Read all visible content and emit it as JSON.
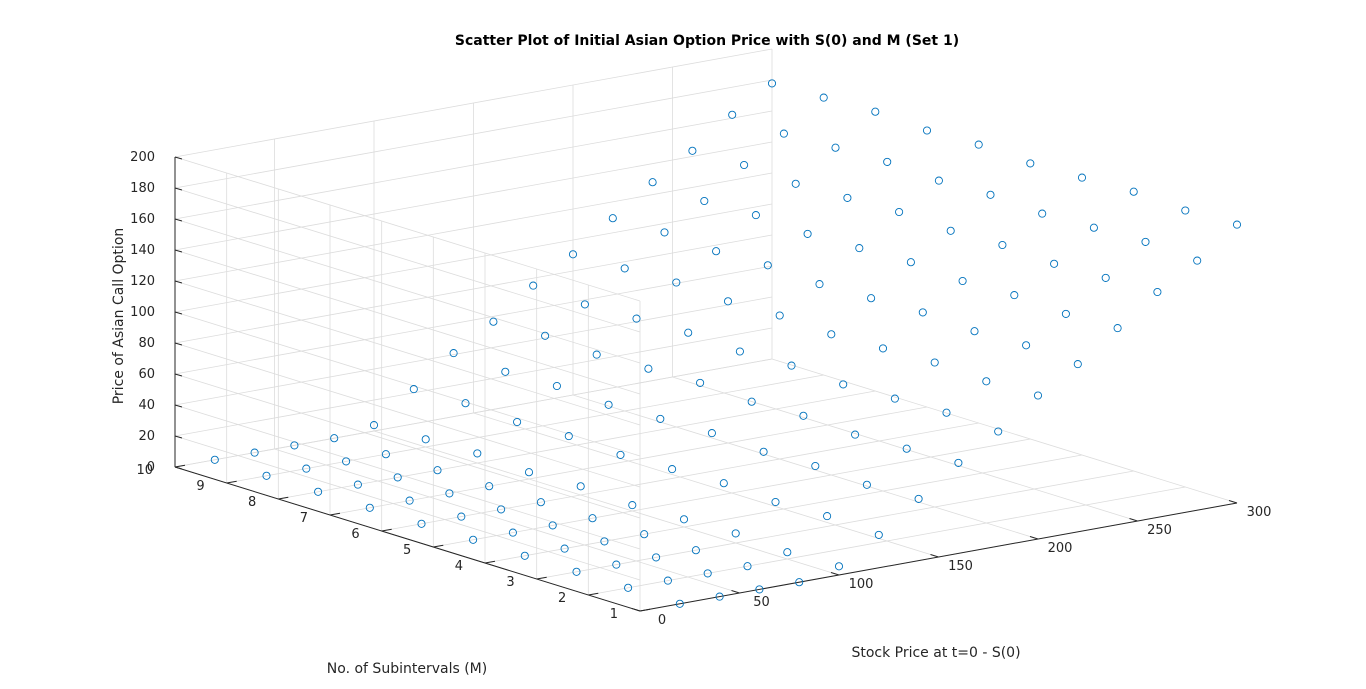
{
  "chart_data": {
    "type": "scatter",
    "title": "Scatter Plot of Initial Asian Option Price with S(0) and M (Set 1)",
    "xlabel": "Stock Price at t=0 - S(0)",
    "ylabel": "No. of Subintervals (M)",
    "zlabel": "Price of Asian Call Option",
    "xlim": [
      0,
      300
    ],
    "ylim": [
      1,
      10
    ],
    "zlim": [
      0,
      200
    ],
    "xticks": [
      "0",
      "50",
      "100",
      "150",
      "200",
      "250",
      "300"
    ],
    "yticks": [
      "1",
      "2",
      "3",
      "4",
      "5",
      "6",
      "7",
      "8",
      "9",
      "10"
    ],
    "zticks": [
      "0",
      "20",
      "40",
      "60",
      "80",
      "100",
      "120",
      "140",
      "160",
      "180",
      "200"
    ],
    "grid": true,
    "marker": "open circle",
    "marker_color": "#0072BD",
    "series": [
      {
        "s0_levels": [
          20,
          40,
          60,
          80,
          100,
          120,
          140,
          160,
          180,
          200,
          220,
          240,
          260,
          280,
          300
        ],
        "m_values": [
          1,
          2,
          3,
          4,
          5,
          6,
          7,
          8,
          9,
          10
        ],
        "price_approx": "max(0, 0.87*S(0) - 82), in data units"
      }
    ]
  }
}
